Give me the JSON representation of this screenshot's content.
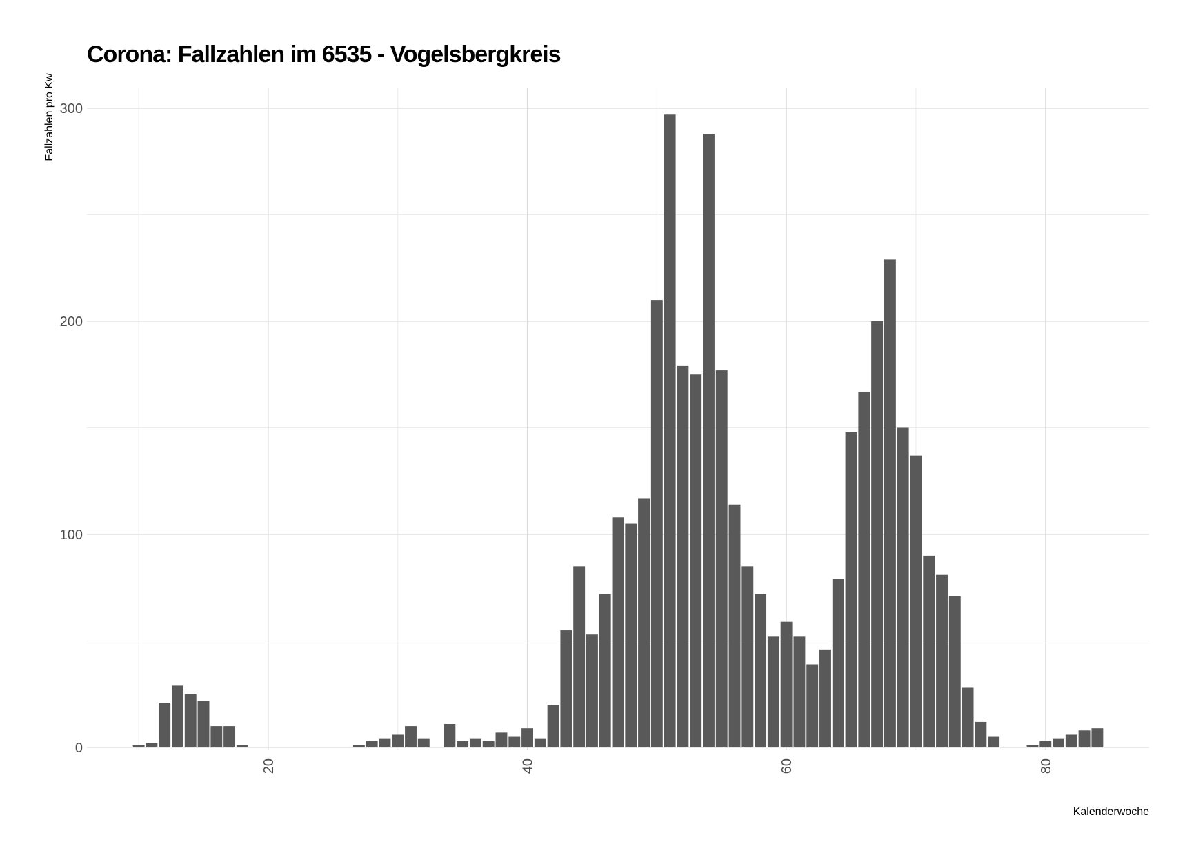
{
  "chart_data": {
    "type": "bar",
    "title": "Corona: Fallzahlen im 6535 - Vogelsbergkreis",
    "xlabel": "Kalenderwoche",
    "ylabel": "Fallzahlen pro Kw",
    "xlim": [
      6,
      88
    ],
    "ylim": [
      0,
      300
    ],
    "x_ticks": [
      20,
      40,
      60,
      80
    ],
    "y_ticks": [
      0,
      100,
      200,
      300
    ],
    "grid": true,
    "bar_color": "#595959",
    "x": [
      10,
      11,
      12,
      13,
      14,
      15,
      16,
      17,
      18,
      19,
      20,
      21,
      22,
      23,
      24,
      25,
      26,
      27,
      28,
      29,
      30,
      31,
      32,
      33,
      34,
      35,
      36,
      37,
      38,
      39,
      40,
      41,
      42,
      43,
      44,
      45,
      46,
      47,
      48,
      49,
      50,
      51,
      52,
      53,
      54,
      55,
      56,
      57,
      58,
      59,
      60,
      61,
      62,
      63,
      64,
      65,
      66,
      67,
      68,
      69,
      70,
      71,
      72,
      73,
      74,
      75,
      76,
      77,
      78,
      79,
      80,
      81,
      82,
      83,
      84
    ],
    "values": [
      1,
      2,
      21,
      29,
      25,
      22,
      10,
      10,
      1,
      0,
      0,
      0,
      0,
      0,
      0,
      0,
      0,
      1,
      3,
      4,
      6,
      10,
      4,
      0,
      11,
      3,
      4,
      3,
      7,
      5,
      9,
      4,
      20,
      55,
      85,
      53,
      72,
      108,
      105,
      117,
      210,
      297,
      179,
      175,
      288,
      177,
      114,
      85,
      72,
      52,
      59,
      52,
      39,
      46,
      79,
      148,
      167,
      200,
      229,
      150,
      137,
      90,
      81,
      71,
      28,
      12,
      5,
      0,
      0,
      1,
      3,
      4,
      6,
      8,
      9
    ]
  }
}
